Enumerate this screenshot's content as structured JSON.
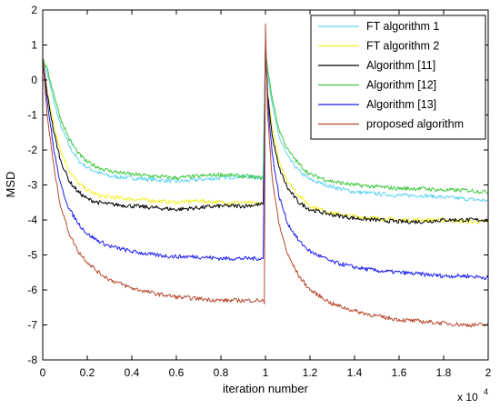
{
  "chart_data": {
    "type": "line",
    "title": "",
    "xlabel": "iteration number",
    "ylabel": "MSD",
    "x_multiplier_label": "x 10",
    "x_multiplier_exponent": "4",
    "xlim": [
      0,
      2
    ],
    "ylim": [
      -8,
      2
    ],
    "x_ticks": [
      0,
      0.2,
      0.4,
      0.6,
      0.8,
      1,
      1.2,
      1.4,
      1.6,
      1.8,
      2
    ],
    "x_tick_labels": [
      "0",
      "0.2",
      "0.4",
      "0.6",
      "0.8",
      "1",
      "1.2",
      "1.4",
      "1.6",
      "1.8",
      "2"
    ],
    "y_ticks": [
      -8,
      -7,
      -6,
      -5,
      -4,
      -3,
      -2,
      -1,
      0,
      1,
      2
    ],
    "y_tick_labels": [
      "-8",
      "-7",
      "-6",
      "-5",
      "-4",
      "-3",
      "-2",
      "-1",
      "0",
      "1",
      "2"
    ],
    "grid": false,
    "legend_position": "top-right",
    "series": [
      {
        "name": "FT algorithm 1",
        "color": "#5fd3f0",
        "x": [
          0,
          0.02,
          0.05,
          0.08,
          0.12,
          0.16,
          0.2,
          0.25,
          0.3,
          0.4,
          0.5,
          0.6,
          0.7,
          0.8,
          0.9,
          0.99,
          1.0,
          1.01,
          1.03,
          1.06,
          1.1,
          1.15,
          1.2,
          1.3,
          1.4,
          1.5,
          1.6,
          1.7,
          1.8,
          1.9,
          2.0
        ],
        "y": [
          0.6,
          0.2,
          -0.6,
          -1.3,
          -1.9,
          -2.3,
          -2.5,
          -2.65,
          -2.75,
          -2.8,
          -2.85,
          -2.9,
          -2.85,
          -2.8,
          -2.75,
          -2.8,
          1.0,
          0.2,
          -0.7,
          -1.6,
          -2.2,
          -2.6,
          -2.85,
          -3.05,
          -3.2,
          -3.25,
          -3.3,
          -3.3,
          -3.35,
          -3.4,
          -3.45
        ]
      },
      {
        "name": "FT algorithm 2",
        "color": "#f2f222",
        "x": [
          0,
          0.02,
          0.05,
          0.08,
          0.12,
          0.16,
          0.2,
          0.25,
          0.3,
          0.4,
          0.5,
          0.6,
          0.7,
          0.8,
          0.9,
          0.99,
          1.0,
          1.01,
          1.03,
          1.06,
          1.1,
          1.15,
          1.2,
          1.3,
          1.4,
          1.5,
          1.6,
          1.7,
          1.8,
          1.9,
          2.0
        ],
        "y": [
          0.6,
          -0.3,
          -1.3,
          -2.0,
          -2.6,
          -2.95,
          -3.15,
          -3.3,
          -3.35,
          -3.4,
          -3.45,
          -3.5,
          -3.45,
          -3.5,
          -3.5,
          -3.55,
          1.0,
          -0.3,
          -1.4,
          -2.3,
          -2.9,
          -3.3,
          -3.6,
          -3.8,
          -3.9,
          -3.95,
          -4.0,
          -4.0,
          -4.0,
          -4.05,
          -4.05
        ]
      },
      {
        "name": "Algorithm [11]",
        "color": "#000000",
        "x": [
          0,
          0.02,
          0.05,
          0.08,
          0.12,
          0.16,
          0.2,
          0.25,
          0.3,
          0.4,
          0.5,
          0.6,
          0.7,
          0.8,
          0.9,
          0.99,
          1.0,
          1.01,
          1.03,
          1.06,
          1.1,
          1.15,
          1.2,
          1.3,
          1.4,
          1.5,
          1.6,
          1.7,
          1.8,
          1.9,
          2.0
        ],
        "y": [
          0.6,
          -0.4,
          -1.5,
          -2.3,
          -2.9,
          -3.2,
          -3.4,
          -3.5,
          -3.55,
          -3.6,
          -3.65,
          -3.7,
          -3.65,
          -3.6,
          -3.6,
          -3.55,
          1.0,
          -0.4,
          -1.6,
          -2.5,
          -3.1,
          -3.5,
          -3.7,
          -3.85,
          -3.95,
          -4.0,
          -4.05,
          -4.05,
          -4.0,
          -4.0,
          -4.0
        ]
      },
      {
        "name": "Algorithm [12]",
        "color": "#3cc83c",
        "x": [
          0,
          0.02,
          0.05,
          0.08,
          0.12,
          0.16,
          0.2,
          0.25,
          0.3,
          0.4,
          0.5,
          0.6,
          0.7,
          0.8,
          0.9,
          0.99,
          1.0,
          1.01,
          1.03,
          1.06,
          1.1,
          1.15,
          1.2,
          1.3,
          1.4,
          1.5,
          1.6,
          1.7,
          1.8,
          1.9,
          2.0
        ],
        "y": [
          0.6,
          0.3,
          -0.4,
          -1.1,
          -1.7,
          -2.1,
          -2.35,
          -2.5,
          -2.6,
          -2.7,
          -2.75,
          -2.8,
          -2.75,
          -2.7,
          -2.75,
          -2.8,
          1.0,
          0.3,
          -0.5,
          -1.4,
          -2.0,
          -2.4,
          -2.7,
          -2.9,
          -3.0,
          -3.05,
          -3.1,
          -3.1,
          -3.15,
          -3.15,
          -3.2
        ]
      },
      {
        "name": "Algorithm [13]",
        "color": "#1c1cf0",
        "x": [
          0,
          0.02,
          0.05,
          0.08,
          0.12,
          0.16,
          0.2,
          0.25,
          0.3,
          0.4,
          0.5,
          0.6,
          0.7,
          0.8,
          0.9,
          0.99,
          1.0,
          1.01,
          1.03,
          1.06,
          1.1,
          1.15,
          1.2,
          1.3,
          1.4,
          1.5,
          1.6,
          1.7,
          1.8,
          1.9,
          2.0
        ],
        "y": [
          0.6,
          -0.6,
          -2.0,
          -3.0,
          -3.7,
          -4.1,
          -4.4,
          -4.6,
          -4.75,
          -4.9,
          -5.0,
          -5.05,
          -5.05,
          -5.1,
          -5.1,
          -5.1,
          1.0,
          -0.6,
          -2.1,
          -3.3,
          -4.1,
          -4.6,
          -4.9,
          -5.2,
          -5.35,
          -5.45,
          -5.5,
          -5.55,
          -5.6,
          -5.6,
          -5.65
        ]
      },
      {
        "name": "proposed algorithm",
        "color": "#b8472e",
        "x": [
          0,
          0.02,
          0.05,
          0.08,
          0.12,
          0.16,
          0.2,
          0.25,
          0.3,
          0.4,
          0.5,
          0.6,
          0.7,
          0.8,
          0.9,
          0.99,
          0.995,
          1.0,
          1.01,
          1.03,
          1.06,
          1.1,
          1.15,
          1.2,
          1.3,
          1.4,
          1.5,
          1.6,
          1.7,
          1.8,
          1.9,
          2.0
        ],
        "y": [
          0.6,
          -1.0,
          -2.5,
          -3.6,
          -4.4,
          -4.9,
          -5.2,
          -5.5,
          -5.7,
          -5.95,
          -6.1,
          -6.2,
          -6.25,
          -6.3,
          -6.3,
          -6.3,
          -6.4,
          1.6,
          -1.0,
          -2.8,
          -4.1,
          -5.0,
          -5.6,
          -6.0,
          -6.4,
          -6.6,
          -6.75,
          -6.85,
          -6.9,
          -6.95,
          -7.0,
          -7.0
        ]
      }
    ]
  }
}
